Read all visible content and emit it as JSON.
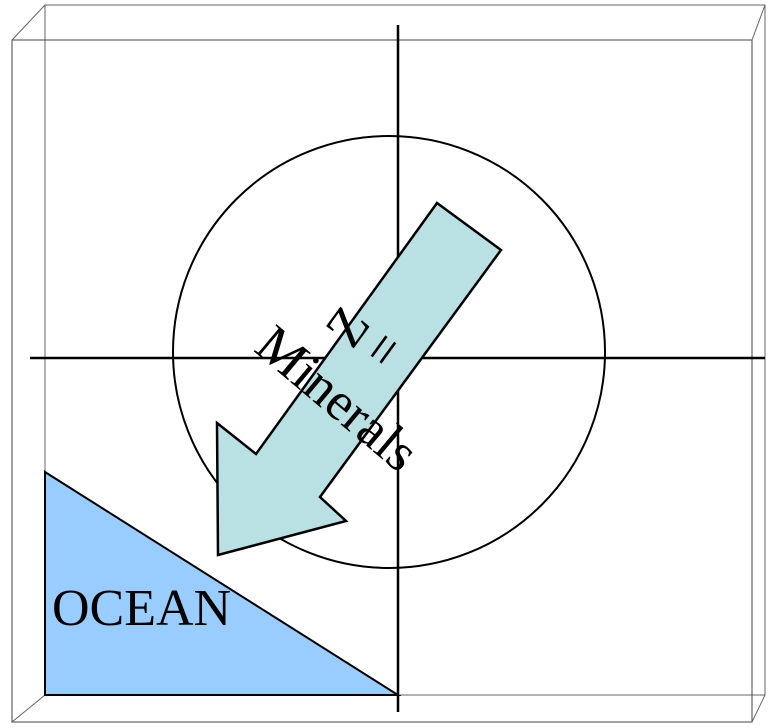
{
  "diagram": {
    "z_label": "Z",
    "equals_label": "=",
    "minerals_label": "Minerals",
    "ocean_label": "OCEAN",
    "colors": {
      "ocean_fill": "#99ccff",
      "arrow_fill": "#b9e0e3",
      "stroke": "#000000",
      "background": "#ffffff"
    }
  }
}
